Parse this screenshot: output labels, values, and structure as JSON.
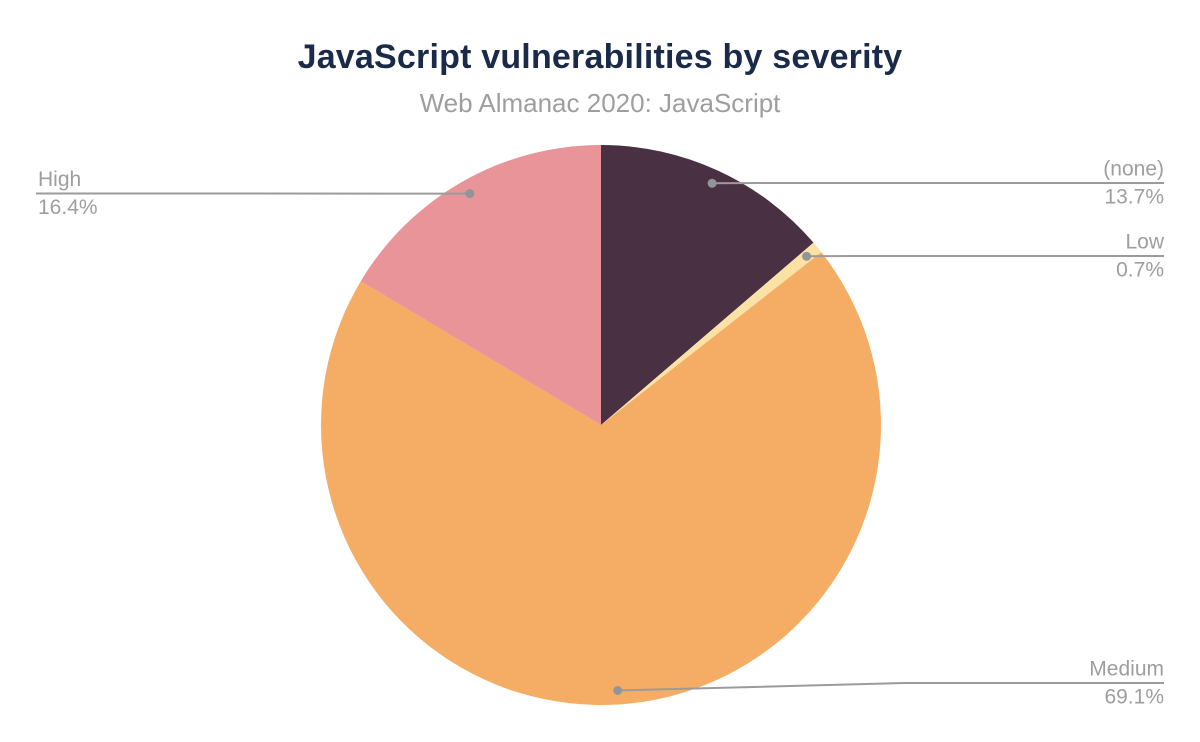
{
  "chart_data": {
    "type": "pie",
    "title": "JavaScript vulnerabilities by severity",
    "subtitle": "Web Almanac 2020: JavaScript",
    "unit": "%",
    "direction": "clockwise",
    "start_angle_deg": 0,
    "label_style": "outside-callout",
    "legend_position": "none",
    "slices": [
      {
        "label": "(none)",
        "value": 13.7,
        "pct_label": "13.7%",
        "color": "#4A3043"
      },
      {
        "label": "Low",
        "value": 0.7,
        "pct_label": "0.7%",
        "color": "#FAE2A4"
      },
      {
        "label": "Medium",
        "value": 69.1,
        "pct_label": "69.1%",
        "color": "#F5AD66"
      },
      {
        "label": "High",
        "value": 16.4,
        "pct_label": "16.4%",
        "color": "#E89499"
      }
    ],
    "colors": {
      "title": "#1A2B49",
      "subtitle": "#9E9E9E",
      "label_text": "#9E9E9E",
      "leader_line": "#9B9B9B",
      "leader_dot": "#919599",
      "background": "#FFFFFF"
    }
  }
}
